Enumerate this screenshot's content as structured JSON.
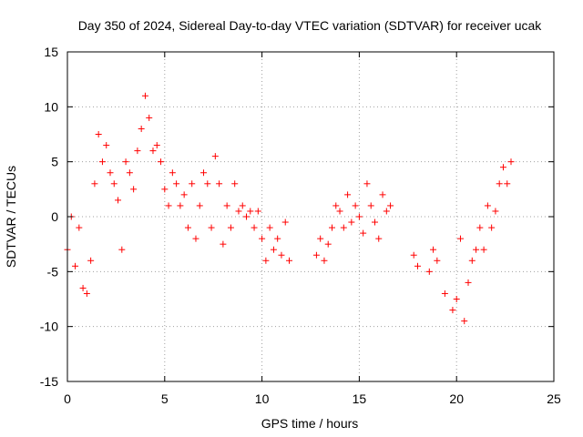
{
  "chart_data": {
    "type": "scatter",
    "title": "Day 350 of 2024, Sidereal Day-to-day VTEC variation (SDTVAR) for receiver ucak",
    "xlabel": "GPS time / hours",
    "ylabel": "SDTVAR / TECUs",
    "xlim": [
      0,
      25
    ],
    "ylim": [
      -15,
      15
    ],
    "xticks": [
      0,
      5,
      10,
      15,
      20,
      25
    ],
    "yticks": [
      -15,
      -10,
      -5,
      0,
      5,
      10,
      15
    ],
    "xtick_labels": [
      "0",
      "5",
      "10",
      "15",
      "20",
      "25"
    ],
    "ytick_labels": [
      "-15",
      "-10",
      "-5",
      "0",
      "5",
      "10",
      "15"
    ],
    "grid": true,
    "marker": "+",
    "color": "#ff0000",
    "series": [
      {
        "name": "SDTVAR",
        "x": [
          0.0,
          0.2,
          0.4,
          0.6,
          0.8,
          1.0,
          1.2,
          1.4,
          1.6,
          1.8,
          2.0,
          2.2,
          2.4,
          2.6,
          2.8,
          3.0,
          3.2,
          3.4,
          3.6,
          3.8,
          4.0,
          4.2,
          4.4,
          4.6,
          4.8,
          5.0,
          5.2,
          5.4,
          5.6,
          5.8,
          6.0,
          6.2,
          6.4,
          6.6,
          6.8,
          7.0,
          7.2,
          7.4,
          7.6,
          7.8,
          8.0,
          8.2,
          8.4,
          8.6,
          8.8,
          9.0,
          9.2,
          9.4,
          9.6,
          9.8,
          10.0,
          10.2,
          10.4,
          10.6,
          10.8,
          11.0,
          11.2,
          11.4,
          12.8,
          13.0,
          13.2,
          13.4,
          13.6,
          13.8,
          14.0,
          14.2,
          14.4,
          14.6,
          14.8,
          15.0,
          15.2,
          15.4,
          15.6,
          15.8,
          16.0,
          16.2,
          16.4,
          16.6,
          17.8,
          18.0,
          18.6,
          18.8,
          19.0,
          19.4,
          19.8,
          20.0,
          20.2,
          20.4,
          20.6,
          20.8,
          21.0,
          21.2,
          21.4,
          21.6,
          21.8,
          22.0,
          22.2,
          22.4,
          22.6,
          22.8
        ],
        "y": [
          -3.0,
          0.0,
          -4.5,
          -1.0,
          -6.5,
          -7.0,
          -4.0,
          3.0,
          7.5,
          5.0,
          6.5,
          4.0,
          3.0,
          1.5,
          -3.0,
          5.0,
          4.0,
          2.5,
          6.0,
          8.0,
          11.0,
          9.0,
          6.0,
          6.5,
          5.0,
          2.5,
          1.0,
          4.0,
          3.0,
          1.0,
          2.0,
          -1.0,
          3.0,
          -2.0,
          1.0,
          4.0,
          3.0,
          -1.0,
          5.5,
          3.0,
          -2.5,
          1.0,
          -1.0,
          3.0,
          0.5,
          1.0,
          0.0,
          0.5,
          -1.0,
          0.5,
          -2.0,
          -4.0,
          -1.0,
          -3.0,
          -2.0,
          -3.5,
          -0.5,
          -4.0,
          -3.5,
          -2.0,
          -4.0,
          -2.5,
          -1.0,
          1.0,
          0.5,
          -1.0,
          2.0,
          -0.5,
          1.0,
          0.0,
          -1.5,
          3.0,
          1.0,
          -0.5,
          -2.0,
          2.0,
          0.5,
          1.0,
          -3.5,
          -4.5,
          -5.0,
          -3.0,
          -4.0,
          -7.0,
          -8.5,
          -7.5,
          -2.0,
          -9.5,
          -6.0,
          -4.0,
          -3.0,
          -1.0,
          -3.0,
          1.0,
          -1.0,
          0.5,
          3.0,
          4.5,
          3.0,
          5.0
        ]
      }
    ]
  }
}
